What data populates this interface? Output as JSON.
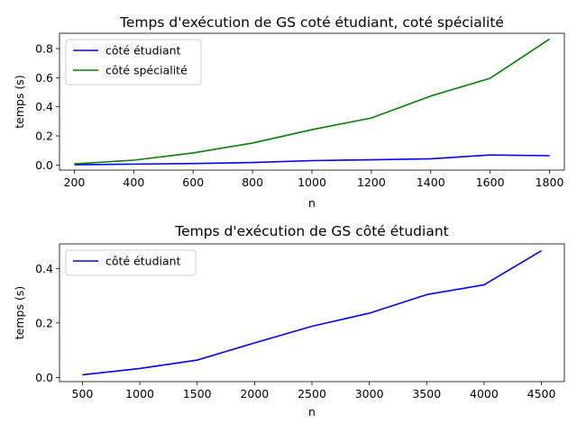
{
  "chart_data": [
    {
      "type": "line",
      "title": "Temps d'exécution de GS coté étudiant, coté spécialité",
      "xlabel": "n",
      "ylabel": "temps (s)",
      "x": [
        200,
        400,
        600,
        800,
        1000,
        1200,
        1400,
        1600,
        1800
      ],
      "xlim": [
        150,
        1850
      ],
      "ylim": [
        -0.035,
        0.905
      ],
      "xticks": [
        200,
        400,
        600,
        800,
        1000,
        1200,
        1400,
        1600,
        1800
      ],
      "yticks": [
        0.0,
        0.2,
        0.4,
        0.6,
        0.8
      ],
      "ytick_labels": [
        "0.0",
        "0.2",
        "0.4",
        "0.6",
        "0.8"
      ],
      "legend_position": "upper-left",
      "grid": false,
      "series": [
        {
          "name": "côté étudiant",
          "color": "#0000ff",
          "values": [
            0.002,
            0.006,
            0.01,
            0.017,
            0.03,
            0.036,
            0.043,
            0.069,
            0.064
          ]
        },
        {
          "name": "côté spécialité",
          "color": "#008000",
          "values": [
            0.008,
            0.033,
            0.083,
            0.151,
            0.243,
            0.323,
            0.474,
            0.596,
            0.865
          ]
        }
      ]
    },
    {
      "type": "line",
      "title": "Temps d'exécution de GS côté étudiant",
      "xlabel": "n",
      "ylabel": "temps (s)",
      "x": [
        500,
        1000,
        1500,
        2000,
        2500,
        3000,
        3500,
        4000,
        4500
      ],
      "xlim": [
        300,
        4700
      ],
      "ylim": [
        -0.015,
        0.49
      ],
      "xticks": [
        500,
        1000,
        1500,
        2000,
        2500,
        3000,
        3500,
        4000,
        4500
      ],
      "yticks": [
        0.0,
        0.2,
        0.4
      ],
      "ytick_labels": [
        "0.0",
        "0.2",
        "0.4"
      ],
      "legend_position": "upper-left",
      "grid": false,
      "series": [
        {
          "name": "côté étudiant",
          "color": "#0000ff",
          "values": [
            0.01,
            0.033,
            0.064,
            0.127,
            0.188,
            0.236,
            0.304,
            0.34,
            0.465
          ]
        }
      ]
    }
  ]
}
